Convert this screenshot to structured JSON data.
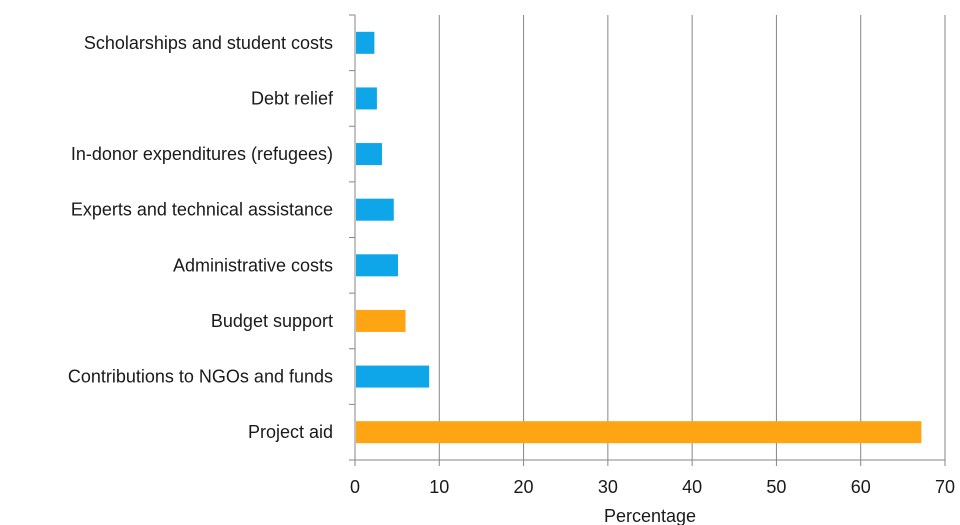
{
  "chart_data": {
    "type": "bar",
    "orientation": "horizontal",
    "title": "",
    "xlabel": "Percentage",
    "ylabel": "",
    "xlim": [
      0,
      70
    ],
    "xticks": [
      0,
      10,
      20,
      30,
      40,
      50,
      60,
      70
    ],
    "grid": "vertical",
    "legend": "none",
    "categories": [
      "Scholarships and student costs",
      "Debt relief",
      "In-donor expenditures (refugees)",
      "Experts and technical assistance",
      "Administrative costs",
      "Budget support",
      "Contributions to NGOs and funds",
      "Project aid"
    ],
    "values": [
      2.3,
      2.6,
      3.2,
      4.6,
      5.1,
      6.0,
      8.8,
      67.2
    ],
    "bar_colors": [
      "#0ea5e9",
      "#0ea5e9",
      "#0ea5e9",
      "#0ea5e9",
      "#0ea5e9",
      "#ffa514",
      "#0ea5e9",
      "#ffa514"
    ]
  },
  "colors": {
    "blue": "#0ea5e9",
    "orange": "#ffa514"
  }
}
